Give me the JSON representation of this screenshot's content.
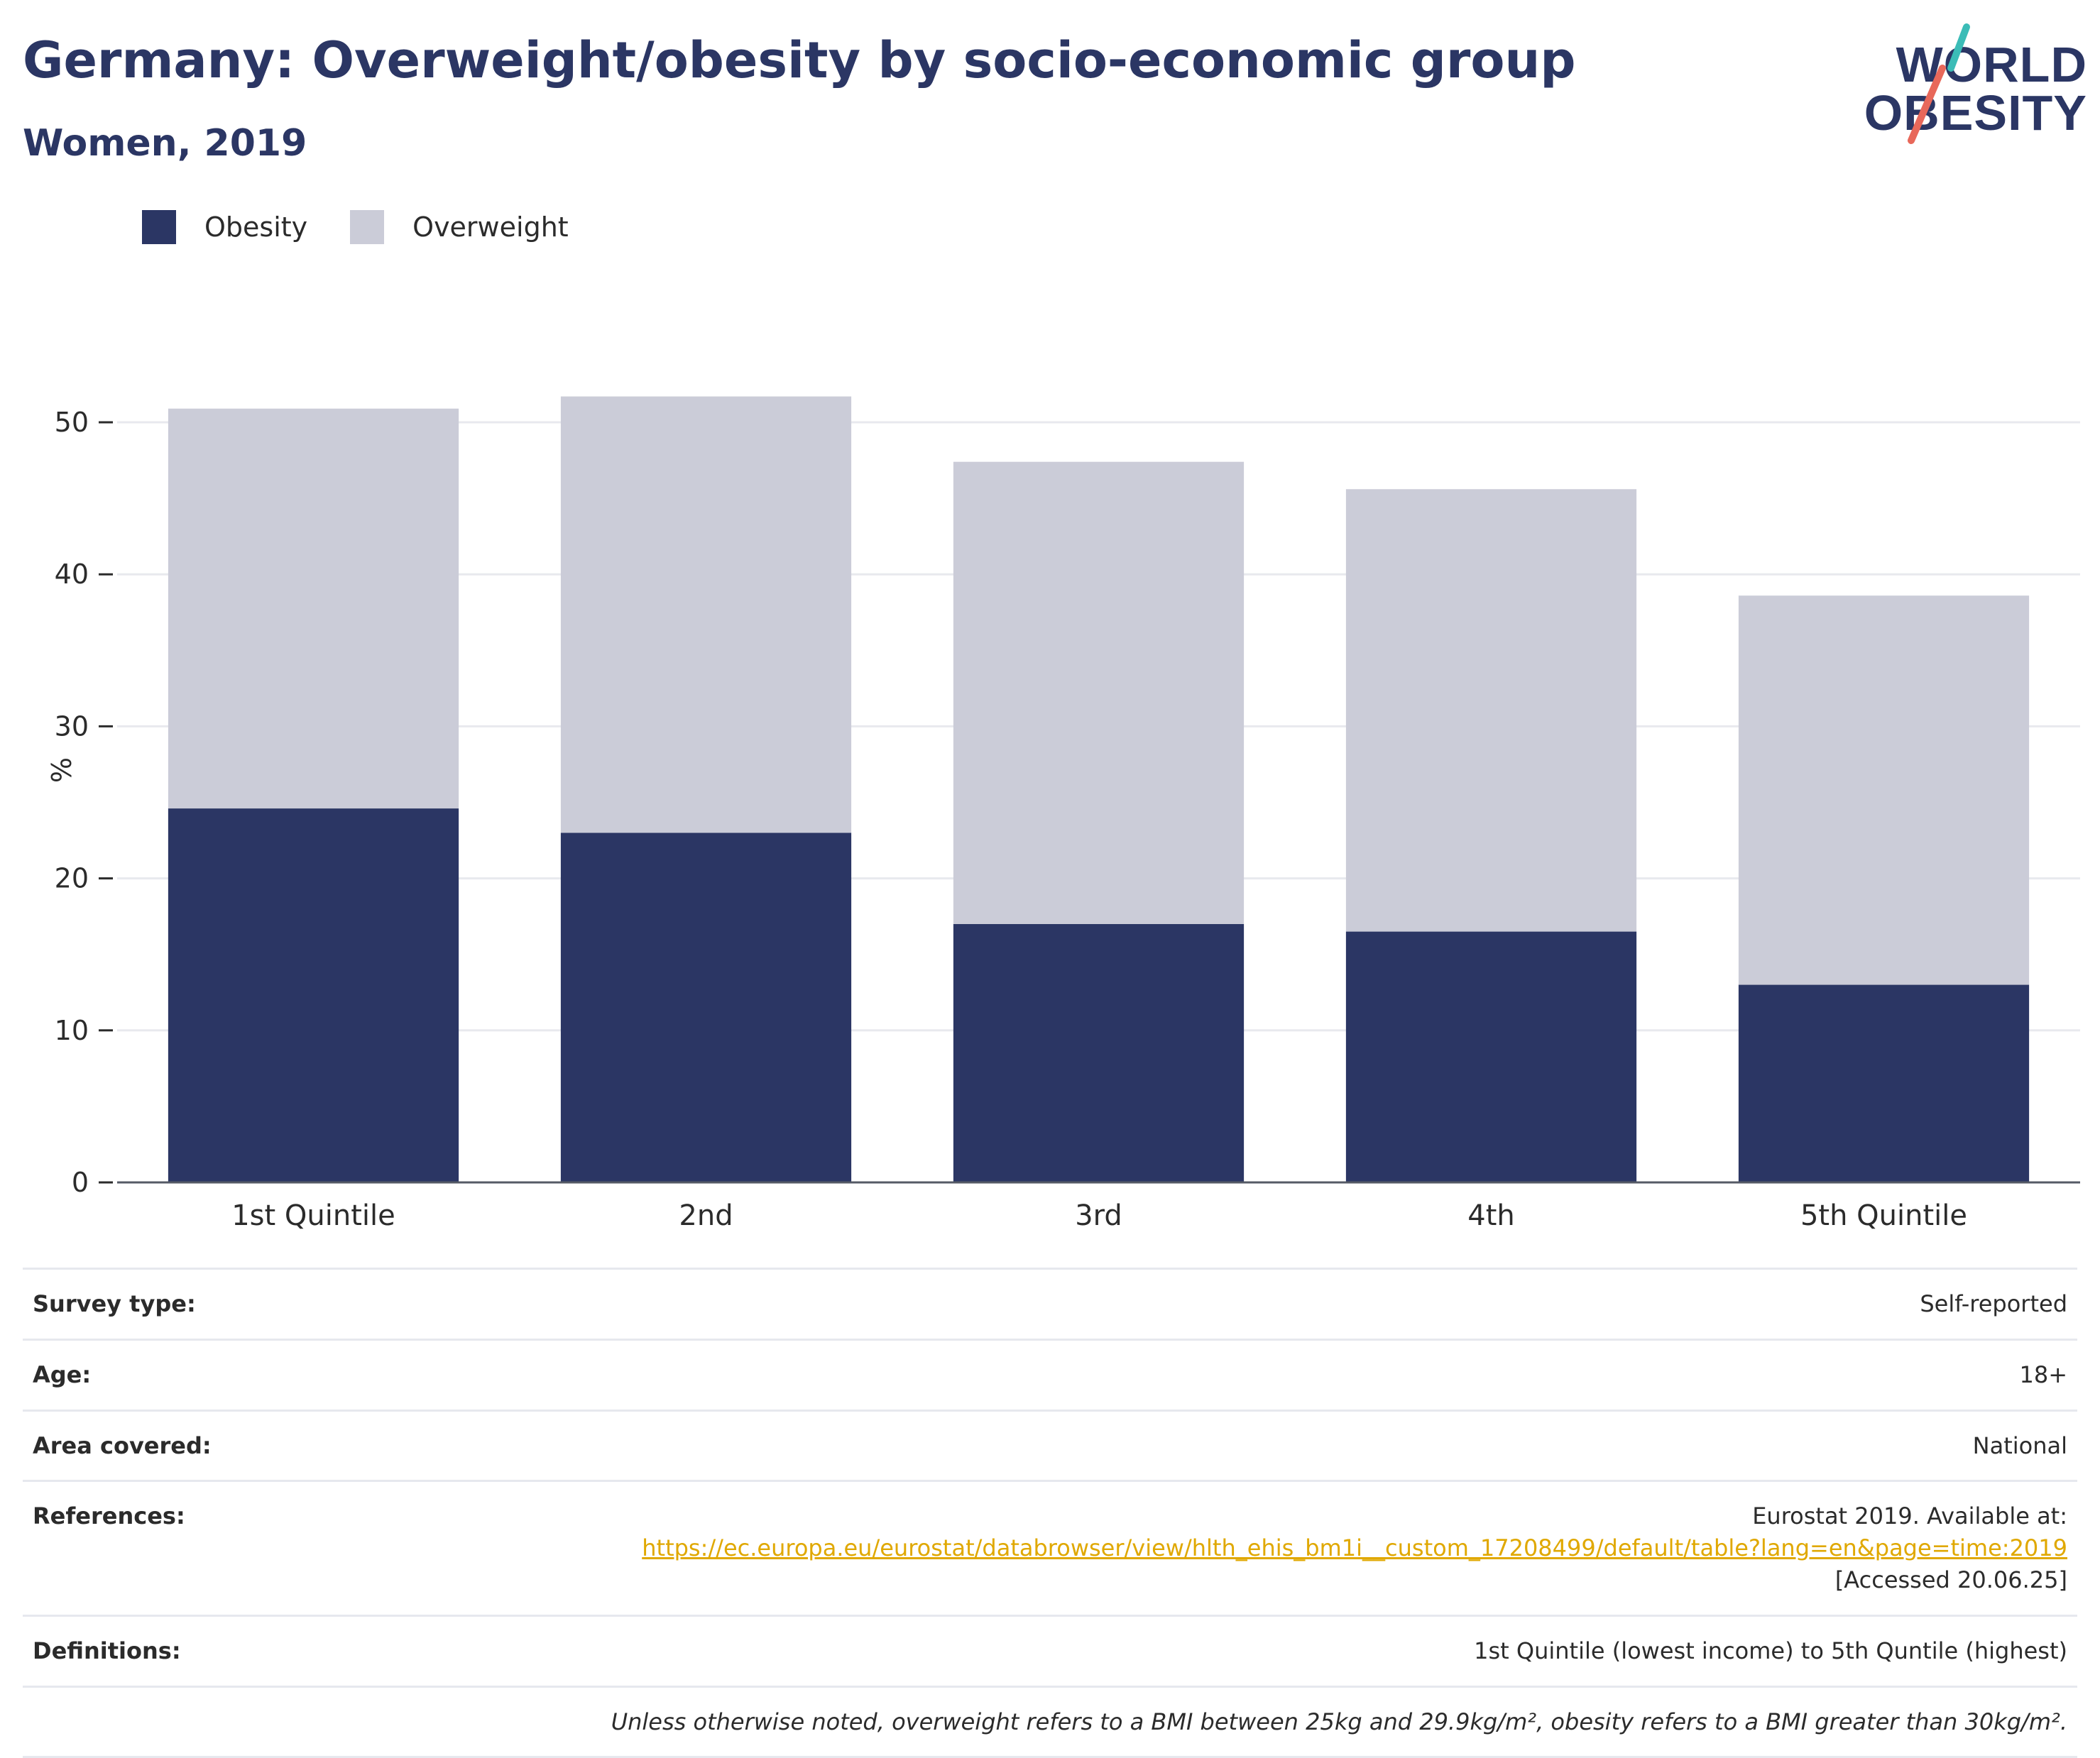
{
  "header": {
    "title": "Germany: Overweight/obesity by socio-economic group",
    "subtitle": "Women, 2019",
    "logo_line1": "WORLD",
    "logo_line2": "OBESITY"
  },
  "colors": {
    "obesity": "#2b3664",
    "overweight": "#cbccd8",
    "text": "#2b3664",
    "link": "#e0a800",
    "logo_teal": "#3bbcb7",
    "logo_coral": "#e8685a"
  },
  "chart_data": {
    "type": "bar",
    "stacked": true,
    "categories": [
      "1st Quintile",
      "2nd",
      "3rd",
      "4th",
      "5th Quintile"
    ],
    "series": [
      {
        "name": "Obesity",
        "values": [
          24.6,
          23.0,
          17.0,
          16.5,
          13.0
        ]
      },
      {
        "name": "Overweight",
        "values": [
          26.3,
          28.7,
          30.4,
          29.1,
          25.6
        ]
      }
    ],
    "ylabel": "%",
    "ylim": [
      0,
      52
    ],
    "yticks": [
      0,
      10,
      20,
      30,
      40,
      50
    ],
    "grid": true,
    "legend_position": "top-left"
  },
  "info": {
    "survey_type_label": "Survey type:",
    "survey_type_value": "Self-reported",
    "age_label": "Age:",
    "age_value": "18+",
    "area_label": "Area covered:",
    "area_value": "National",
    "references_label": "References:",
    "references_prefix": "Eurostat 2019. Available at:",
    "references_link": "https://ec.europa.eu/eurostat/databrowser/view/hlth_ehis_bm1i__custom_17208499/default/table?lang=en&page=time:2019",
    "references_suffix": "[Accessed 20.06.25]",
    "definitions_label": "Definitions:",
    "definitions_value": "1st Quintile (lowest income) to 5th Quntile (highest)",
    "footnote": "Unless otherwise noted, overweight refers to a BMI between 25kg and 29.9kg/m², obesity refers to a BMI greater than 30kg/m²."
  }
}
